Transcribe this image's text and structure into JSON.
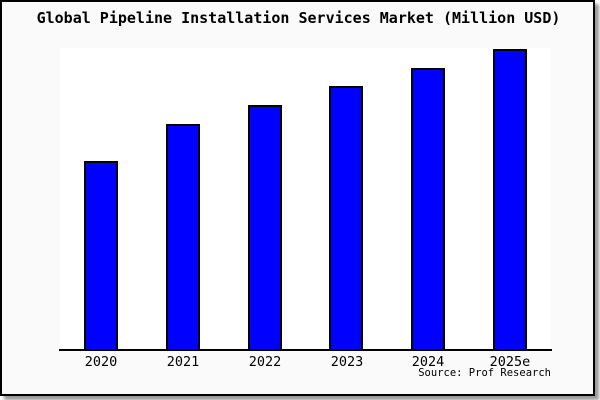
{
  "title": "Global Pipeline Installation Services Market (Million USD)",
  "source": "Source: Prof Research",
  "colors": {
    "bar_fill": "#0000fe",
    "bar_border": "#000000",
    "frame_border": "#000000",
    "frame_background": "#fafafa",
    "plot_background": "#ffffff",
    "text": "#000000"
  },
  "chart_data": {
    "type": "bar",
    "title": "Global Pipeline Installation Services Market (Million USD)",
    "categories": [
      "2020",
      "2021",
      "2022",
      "2023",
      "2024",
      "2025e"
    ],
    "values": [
      62.7,
      75.0,
      81.3,
      87.7,
      93.7,
      100
    ],
    "value_note": "y-axis unlabeled; values are relative heights with 2025e = 100",
    "xlabel": "",
    "ylabel": "",
    "ylim": [
      0,
      100
    ],
    "grid": false,
    "legend": false,
    "y_axis_visible": false
  }
}
